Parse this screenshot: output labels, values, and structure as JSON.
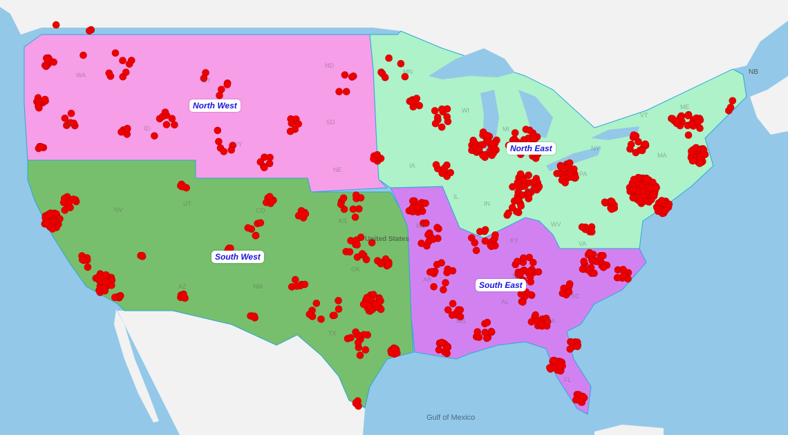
{
  "colors": {
    "ocean": "#93c8e8",
    "land": "#f2f2f2",
    "north_west": "#f79ee9",
    "south_west": "#77bf6c",
    "south_east": "#d282f0",
    "north_east": "#aef2c9",
    "marker": "#ee0000",
    "label_text": "#1a14e0"
  },
  "regions": [
    {
      "id": "north_west",
      "label": "North West"
    },
    {
      "id": "north_east",
      "label": "North East"
    },
    {
      "id": "south_west",
      "label": "South West"
    },
    {
      "id": "south_east",
      "label": "South East"
    }
  ],
  "state_labels": [
    "WA",
    "OR",
    "ID",
    "MT",
    "WY",
    "ND",
    "SD",
    "NE",
    "NV",
    "UT",
    "CO",
    "KS",
    "AZ",
    "NM",
    "TX",
    "OK",
    "MN",
    "WI",
    "IA",
    "MI",
    "IL",
    "MO",
    "KY",
    "PA",
    "NY",
    "VT",
    "ME",
    "MA",
    "WV",
    "VA",
    "AR",
    "MS",
    "AL",
    "GA",
    "SC",
    "FL",
    "TN",
    "OH",
    "IN"
  ],
  "geo_labels": {
    "country": "United States",
    "gulf": "Gulf of Mexico",
    "province": "NB"
  },
  "marker_icon": "red-circle"
}
